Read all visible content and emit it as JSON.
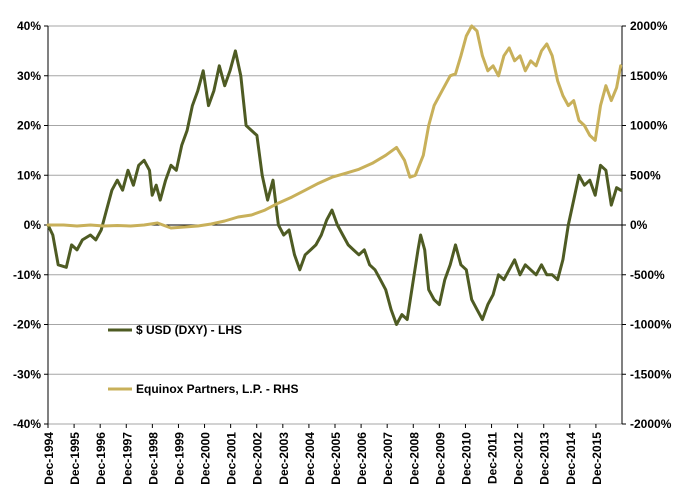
{
  "chart_data": {
    "type": "line",
    "x_categories": [
      "Dec-1994",
      "Dec-1995",
      "Dec-1996",
      "Dec-1997",
      "Dec-1998",
      "Dec-1999",
      "Dec-2000",
      "Dec-2001",
      "Dec-2002",
      "Dec-2003",
      "Dec-2004",
      "Dec-2005",
      "Dec-2006",
      "Dec-2007",
      "Dec-2008",
      "Dec-2009",
      "Dec-2010",
      "Dec-2011",
      "Dec-2012",
      "Dec-2013",
      "Dec-2014",
      "Dec-2015"
    ],
    "y_left": {
      "ticks": [
        "40%",
        "30%",
        "20%",
        "10%",
        "0%",
        "-10%",
        "-20%",
        "-30%",
        "-40%"
      ],
      "range": [
        -40,
        40
      ]
    },
    "y_right": {
      "ticks": [
        "2000%",
        "1500%",
        "1000%",
        "500%",
        "0%",
        "-500%",
        "-1000%",
        "-1500%",
        "-2000%"
      ],
      "range": [
        -2000,
        2000
      ]
    },
    "grid": true,
    "series": [
      {
        "name": "$ USD (DXY) - LHS",
        "axis": "left",
        "color": "#4e5b23",
        "points": [
          [
            1994.92,
            0
          ],
          [
            1995.1,
            -2
          ],
          [
            1995.3,
            -8
          ],
          [
            1995.6,
            -8.5
          ],
          [
            1995.8,
            -4
          ],
          [
            1996.0,
            -5
          ],
          [
            1996.2,
            -3
          ],
          [
            1996.5,
            -2
          ],
          [
            1996.7,
            -3
          ],
          [
            1996.9,
            -1
          ],
          [
            1997.1,
            3
          ],
          [
            1997.3,
            7
          ],
          [
            1997.5,
            9
          ],
          [
            1997.7,
            7
          ],
          [
            1997.9,
            11
          ],
          [
            1998.1,
            8
          ],
          [
            1998.3,
            12
          ],
          [
            1998.5,
            13
          ],
          [
            1998.7,
            11
          ],
          [
            1998.8,
            6
          ],
          [
            1998.95,
            8
          ],
          [
            1999.1,
            5
          ],
          [
            1999.3,
            9
          ],
          [
            1999.5,
            12
          ],
          [
            1999.7,
            11
          ],
          [
            1999.9,
            16
          ],
          [
            2000.1,
            19
          ],
          [
            2000.3,
            24
          ],
          [
            2000.5,
            27
          ],
          [
            2000.7,
            31
          ],
          [
            2000.9,
            24
          ],
          [
            2001.1,
            27
          ],
          [
            2001.3,
            32
          ],
          [
            2001.5,
            28
          ],
          [
            2001.7,
            31
          ],
          [
            2001.9,
            35
          ],
          [
            2002.1,
            30
          ],
          [
            2002.3,
            20
          ],
          [
            2002.5,
            19
          ],
          [
            2002.7,
            18
          ],
          [
            2002.9,
            10
          ],
          [
            2003.1,
            5
          ],
          [
            2003.3,
            9
          ],
          [
            2003.5,
            0
          ],
          [
            2003.7,
            -2
          ],
          [
            2003.9,
            -1
          ],
          [
            2004.1,
            -6
          ],
          [
            2004.3,
            -9
          ],
          [
            2004.5,
            -6
          ],
          [
            2004.7,
            -5
          ],
          [
            2004.9,
            -4
          ],
          [
            2005.1,
            -2
          ],
          [
            2005.3,
            1
          ],
          [
            2005.5,
            3
          ],
          [
            2005.7,
            0
          ],
          [
            2005.9,
            -2
          ],
          [
            2006.1,
            -4
          ],
          [
            2006.3,
            -5
          ],
          [
            2006.5,
            -6
          ],
          [
            2006.7,
            -5
          ],
          [
            2006.9,
            -8
          ],
          [
            2007.1,
            -9
          ],
          [
            2007.3,
            -11
          ],
          [
            2007.5,
            -13
          ],
          [
            2007.7,
            -17
          ],
          [
            2007.9,
            -20
          ],
          [
            2008.1,
            -18
          ],
          [
            2008.3,
            -19
          ],
          [
            2008.5,
            -12
          ],
          [
            2008.7,
            -5
          ],
          [
            2008.8,
            -2
          ],
          [
            2008.95,
            -5
          ],
          [
            2009.1,
            -13
          ],
          [
            2009.3,
            -15
          ],
          [
            2009.5,
            -16
          ],
          [
            2009.7,
            -11
          ],
          [
            2009.9,
            -8
          ],
          [
            2010.1,
            -4
          ],
          [
            2010.3,
            -8
          ],
          [
            2010.5,
            -9
          ],
          [
            2010.7,
            -15
          ],
          [
            2010.9,
            -17
          ],
          [
            2011.1,
            -19
          ],
          [
            2011.3,
            -16
          ],
          [
            2011.5,
            -14
          ],
          [
            2011.7,
            -10
          ],
          [
            2011.9,
            -11
          ],
          [
            2012.1,
            -9
          ],
          [
            2012.3,
            -7
          ],
          [
            2012.5,
            -10
          ],
          [
            2012.7,
            -8
          ],
          [
            2012.9,
            -9
          ],
          [
            2013.1,
            -10
          ],
          [
            2013.3,
            -8
          ],
          [
            2013.5,
            -10
          ],
          [
            2013.7,
            -10
          ],
          [
            2013.9,
            -11
          ],
          [
            2014.1,
            -7
          ],
          [
            2014.3,
            0
          ],
          [
            2014.5,
            5
          ],
          [
            2014.7,
            10
          ],
          [
            2014.9,
            8
          ],
          [
            2015.1,
            9
          ],
          [
            2015.3,
            6
          ],
          [
            2015.5,
            12
          ],
          [
            2015.7,
            11
          ],
          [
            2015.9,
            4
          ],
          [
            2016.1,
            7.5
          ],
          [
            2016.25,
            7
          ]
        ]
      },
      {
        "name": "Equinox Partners, L.P. - RHS",
        "axis": "right",
        "color": "#c8b05a",
        "points": [
          [
            1994.92,
            0
          ],
          [
            1995.5,
            0
          ],
          [
            1996.0,
            -10
          ],
          [
            1996.5,
            0
          ],
          [
            1997.0,
            -10
          ],
          [
            1997.5,
            -5
          ],
          [
            1998.0,
            -10
          ],
          [
            1998.5,
            0
          ],
          [
            1999.0,
            20
          ],
          [
            1999.5,
            -30
          ],
          [
            2000.0,
            -20
          ],
          [
            2000.5,
            -10
          ],
          [
            2001.0,
            10
          ],
          [
            2001.5,
            40
          ],
          [
            2002.0,
            80
          ],
          [
            2002.5,
            100
          ],
          [
            2003.0,
            150
          ],
          [
            2003.5,
            220
          ],
          [
            2004.0,
            280
          ],
          [
            2004.5,
            350
          ],
          [
            2005.0,
            420
          ],
          [
            2005.5,
            480
          ],
          [
            2006.0,
            520
          ],
          [
            2006.5,
            560
          ],
          [
            2007.0,
            620
          ],
          [
            2007.5,
            700
          ],
          [
            2007.9,
            780
          ],
          [
            2008.2,
            650
          ],
          [
            2008.4,
            480
          ],
          [
            2008.6,
            500
          ],
          [
            2008.9,
            700
          ],
          [
            2009.1,
            1000
          ],
          [
            2009.3,
            1200
          ],
          [
            2009.6,
            1350
          ],
          [
            2009.9,
            1500
          ],
          [
            2010.1,
            1520
          ],
          [
            2010.3,
            1700
          ],
          [
            2010.5,
            1900
          ],
          [
            2010.7,
            2000
          ],
          [
            2010.9,
            1950
          ],
          [
            2011.1,
            1700
          ],
          [
            2011.3,
            1550
          ],
          [
            2011.5,
            1600
          ],
          [
            2011.7,
            1500
          ],
          [
            2011.9,
            1700
          ],
          [
            2012.1,
            1780
          ],
          [
            2012.3,
            1650
          ],
          [
            2012.5,
            1700
          ],
          [
            2012.7,
            1550
          ],
          [
            2012.9,
            1650
          ],
          [
            2013.1,
            1600
          ],
          [
            2013.3,
            1750
          ],
          [
            2013.5,
            1820
          ],
          [
            2013.7,
            1700
          ],
          [
            2013.9,
            1450
          ],
          [
            2014.1,
            1300
          ],
          [
            2014.3,
            1200
          ],
          [
            2014.5,
            1250
          ],
          [
            2014.7,
            1050
          ],
          [
            2014.9,
            1000
          ],
          [
            2015.1,
            900
          ],
          [
            2015.3,
            850
          ],
          [
            2015.5,
            1200
          ],
          [
            2015.7,
            1400
          ],
          [
            2015.9,
            1250
          ],
          [
            2016.1,
            1380
          ],
          [
            2016.25,
            1600
          ]
        ]
      }
    ]
  }
}
